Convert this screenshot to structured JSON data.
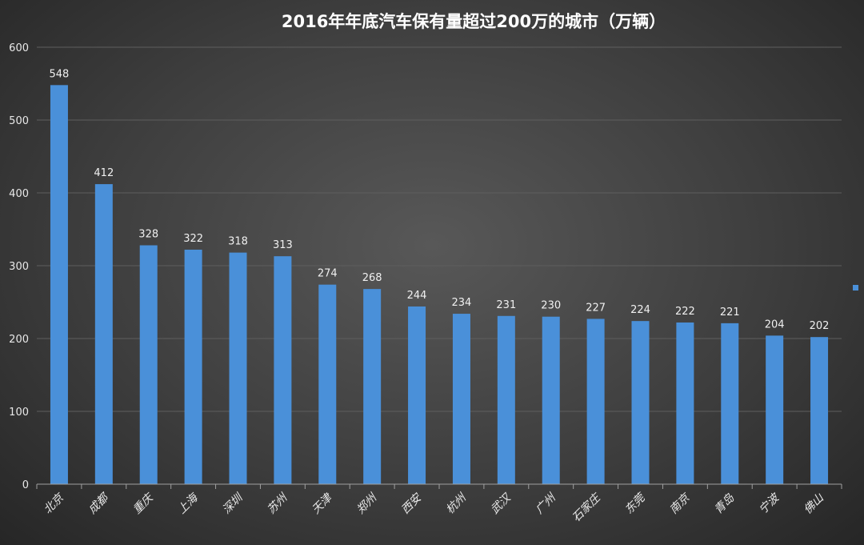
{
  "chart_data": {
    "type": "bar",
    "title": "2016年年底汽车保有量超过200万的城市（万辆）",
    "categories": [
      "北京",
      "成都",
      "重庆",
      "上海",
      "深圳",
      "苏州",
      "天津",
      "郑州",
      "西安",
      "杭州",
      "武汉",
      "广州",
      "石家庄",
      "东莞",
      "南京",
      "青岛",
      "宁波",
      "佛山"
    ],
    "values": [
      548,
      412,
      328,
      322,
      318,
      313,
      274,
      268,
      244,
      234,
      231,
      230,
      227,
      224,
      222,
      221,
      204,
      202
    ],
    "yticks": [
      "0",
      "100",
      "200",
      "300",
      "400",
      "500",
      "600"
    ],
    "ylim": [
      0,
      600
    ],
    "xlabel": "",
    "ylabel": "",
    "grid": true,
    "legend": "right",
    "colors": {
      "bar": "#4a90d9",
      "grid": "#5e5e5e",
      "axis": "#a0a0a0"
    }
  }
}
